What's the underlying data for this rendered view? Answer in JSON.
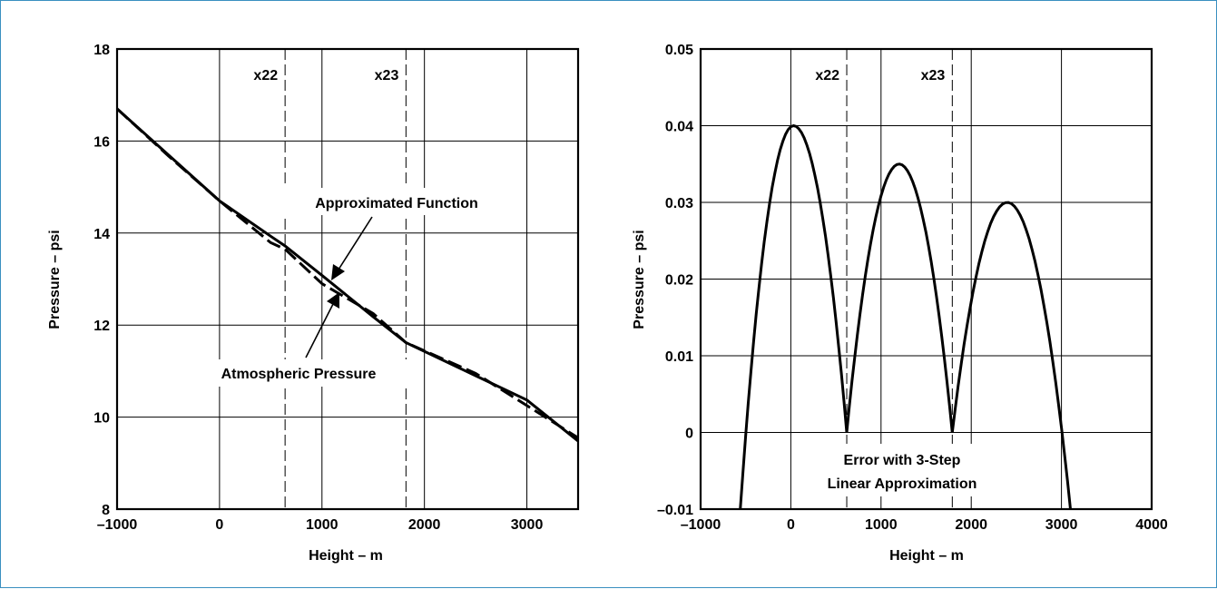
{
  "chart_data": [
    {
      "type": "line",
      "xlabel": "Height – m",
      "ylabel": "Pressure – psi",
      "xlim": [
        -1000,
        3500
      ],
      "ylim": [
        8,
        18
      ],
      "xticks": [
        -1000,
        0,
        1000,
        2000,
        3000
      ],
      "xtick_labels": [
        "–1000",
        "0",
        "1000",
        "2000",
        "3000"
      ],
      "yticks": [
        8,
        10,
        12,
        14,
        16,
        18
      ],
      "ytick_labels": [
        "8",
        "10",
        "12",
        "14",
        "16",
        "18"
      ],
      "grid": true,
      "markers": [
        {
          "label": "x22",
          "x": 640
        },
        {
          "label": "x23",
          "x": 1820
        }
      ],
      "series": [
        {
          "name": "Approximated Function",
          "style": "solid",
          "x": [
            -1000,
            0,
            500,
            640,
            1000,
            1500,
            1820,
            2500,
            3000,
            3500
          ],
          "y": [
            16.7,
            14.7,
            13.93,
            13.72,
            13.08,
            12.18,
            11.62,
            10.9,
            10.37,
            9.48
          ]
        },
        {
          "name": "Atmospheric Pressure",
          "style": "dashed",
          "x": [
            -1000,
            -500,
            0,
            500,
            640,
            1000,
            1500,
            1820,
            2500,
            3000,
            3500
          ],
          "y": [
            16.7,
            15.68,
            14.7,
            13.79,
            13.65,
            12.9,
            12.25,
            11.62,
            10.95,
            10.25,
            9.55
          ]
        }
      ],
      "annotations": [
        {
          "text": "Approximated Function",
          "points_to": [
            1110,
            12.95
          ]
        },
        {
          "text": "Atmospheric Pressure",
          "points_to": [
            1150,
            12.6
          ]
        }
      ]
    },
    {
      "type": "line",
      "xlabel": "Height – m",
      "ylabel": "Pressure – psi",
      "xlim": [
        -1000,
        4000
      ],
      "ylim": [
        -0.01,
        0.05
      ],
      "xticks": [
        -1000,
        0,
        1000,
        2000,
        3000,
        4000
      ],
      "xtick_labels": [
        "–1000",
        "0",
        "1000",
        "2000",
        "3000",
        "4000"
      ],
      "yticks": [
        -0.01,
        0,
        0.01,
        0.02,
        0.03,
        0.04,
        0.05
      ],
      "ytick_labels": [
        "–0.01",
        "0",
        "0.01",
        "0.02",
        "0.03",
        "0.04",
        "0.05"
      ],
      "grid": true,
      "markers": [
        {
          "label": "x22",
          "x": 620
        },
        {
          "label": "x23",
          "x": 1790
        }
      ],
      "series": [
        {
          "style": "solid",
          "segments": [
            {
              "x_start": -560,
              "x_peak": 30,
              "x_end": 620,
              "y_peak": 0.04,
              "y_start": -0.01,
              "y_end": 0
            },
            {
              "x_start": 620,
              "x_peak": 1200,
              "x_end": 1790,
              "y_peak": 0.035,
              "y_start": 0,
              "y_end": 0
            },
            {
              "x_start": 1790,
              "x_peak": 2400,
              "x_end": 3100,
              "y_peak": 0.03,
              "y_start": 0,
              "y_end": -0.01
            }
          ]
        }
      ],
      "annotations": [
        {
          "text": "Error with 3-Step",
          "line": 1
        },
        {
          "text": "Linear Approximation",
          "line": 2
        }
      ]
    }
  ]
}
